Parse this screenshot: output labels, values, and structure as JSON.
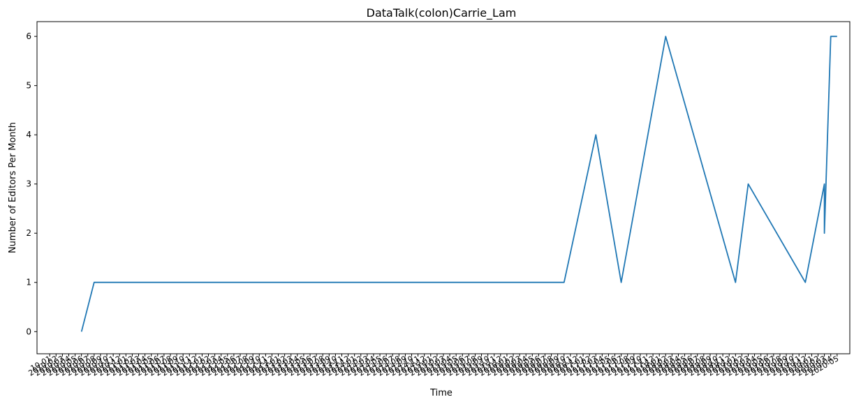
{
  "chart_data": {
    "type": "line",
    "title": "DataTalk(colon)Carrie_Lam",
    "xlabel": "Time",
    "ylabel": "Number of Editors Per Month",
    "ylim": [
      -0.45,
      6.3
    ],
    "yticks": [
      0,
      1,
      2,
      3,
      4,
      5,
      6
    ],
    "xlim": [
      "2009-11",
      "2020-07"
    ],
    "grid": false,
    "legend": "none",
    "color": "#1f77b4",
    "series": [
      {
        "x": [
          "2010-06",
          "2010-08",
          "2016-10",
          "2017-03",
          "2017-07",
          "2017-07",
          "2018-02",
          "2019-01",
          "2019-03",
          "2019-12",
          "2020-03",
          "2020-03",
          "2020-04",
          "2020-05",
          "2020-05"
        ],
        "y": [
          0,
          1,
          1,
          4,
          1,
          1,
          6,
          1,
          3,
          1,
          3,
          2,
          6,
          6,
          6
        ]
      }
    ],
    "xtick_labels": [
      "10-01",
      "2010-02",
      "2010-03",
      "2010-04",
      "2010-05",
      "2010-06",
      "2010-07",
      "2010-08",
      "2010-09",
      "2010-10",
      "2010-11",
      "2010-12",
      "2011-01",
      "2011-02",
      "2011-03",
      "2011-04",
      "2011-05",
      "2011-06",
      "2011-07",
      "2011-08",
      "2011-09",
      "2011-10",
      "2011-11",
      "2011-12",
      "2012-01",
      "2012-02",
      "2012-03",
      "2012-04",
      "2012-05",
      "2012-06",
      "2012-07",
      "2012-08",
      "2012-09",
      "2012-10",
      "2012-11",
      "2012-12",
      "2013-01",
      "2013-02",
      "2013-03",
      "2013-04",
      "2013-05",
      "2013-06",
      "2013-07",
      "2013-08",
      "2013-09",
      "2013-10",
      "2013-11",
      "2013-12",
      "2014-01",
      "2014-02",
      "2014-03",
      "2014-04",
      "2014-05",
      "2014-06",
      "2014-07",
      "2014-08",
      "2014-09",
      "2014-10",
      "2014-11",
      "2014-12",
      "2015-01",
      "2015-02",
      "2015-03",
      "2015-04",
      "2015-05",
      "2015-06",
      "2015-07",
      "2015-08",
      "2015-09",
      "2015-10",
      "2015-11",
      "2015-12",
      "2016-01",
      "2016-02",
      "2016-03",
      "2016-04",
      "2016-05",
      "2016-06",
      "2016-07",
      "2016-08",
      "2016-09",
      "2016-10",
      "2016-11",
      "2016-12",
      "2017-01",
      "2017-02",
      "2017-03",
      "2017-04",
      "2017-05",
      "2017-06",
      "2017-07",
      "2017-08",
      "2017-09",
      "2017-10",
      "2017-11",
      "2017-12",
      "2018-01",
      "2018-02",
      "2018-03",
      "2018-04",
      "2018-05",
      "2018-06",
      "2018-07",
      "2018-08",
      "2018-09",
      "2018-10",
      "2018-11",
      "2018-12",
      "2019-01",
      "2019-02",
      "2019-03",
      "2019-04",
      "2019-05",
      "2019-06",
      "2019-07",
      "2019-08",
      "2019-09",
      "2019-10",
      "2019-11",
      "2019-12",
      "2020-01",
      "2020-02",
      "2020-03",
      "2020-04",
      "2020-05"
    ]
  }
}
